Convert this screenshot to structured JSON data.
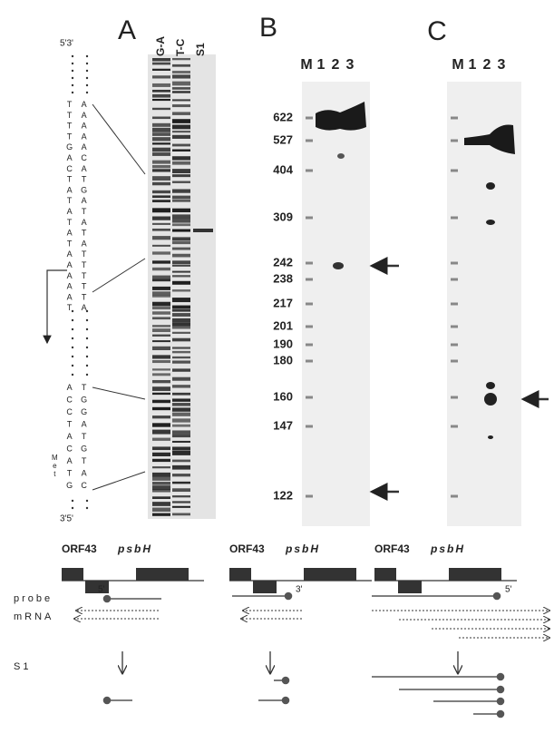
{
  "panel_labels": [
    "A",
    "B",
    "C"
  ],
  "panel_a": {
    "lanes": [
      "G-A",
      "T-C",
      "S1"
    ],
    "top_end": "5'3'",
    "bottom_end": "3'5'",
    "seq_upper_left": "TTTTGACTATATATAAAAAT",
    "seq_upper_right": "AAAAACATGATATATTTTTA",
    "seq_lower_left": "ACCTACATG",
    "seq_lower_right": "TGGATGTAC",
    "met": "Met"
  },
  "panel_b": {
    "lanes": [
      "M",
      "1",
      "2",
      "3"
    ],
    "size_markers": [
      622,
      527,
      404,
      309,
      242,
      238,
      217,
      201,
      190,
      180,
      160,
      147,
      122
    ]
  },
  "panel_c": {
    "lanes": [
      "M",
      "1",
      "2",
      "3"
    ]
  },
  "diagram": {
    "genes": [
      "ORF43",
      "psbH"
    ],
    "row_labels": [
      "probe",
      "mRNA",
      "S1"
    ],
    "panel_a_end": "5'",
    "panel_b_end": "3'",
    "panel_c_end": "5'"
  }
}
